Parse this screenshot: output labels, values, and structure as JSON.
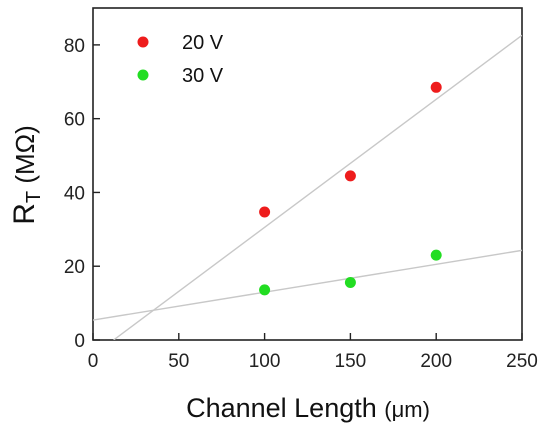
{
  "chart_data": {
    "type": "scatter",
    "xlabel": {
      "main": "Channel Length ",
      "unit": "(μm)"
    },
    "ylabel": {
      "main": "R",
      "sub": "T",
      "unit": " (MΩ)"
    },
    "xlim": [
      0,
      250
    ],
    "ylim": [
      0,
      90
    ],
    "xticks": [
      0,
      50,
      100,
      150,
      200,
      250
    ],
    "yticks": [
      0,
      20,
      40,
      60,
      80
    ],
    "legend_position": "top-left",
    "series": [
      {
        "name": "20 V",
        "color": "#ee1c1c",
        "x": [
          100,
          150,
          200
        ],
        "y": [
          34.7,
          44.5,
          68.5
        ],
        "fit_line": {
          "x": [
            12,
            250
          ],
          "y": [
            0,
            82.6
          ]
        }
      },
      {
        "name": "30 V",
        "color": "#22dd22",
        "x": [
          100,
          150,
          200
        ],
        "y": [
          13.6,
          15.6,
          23.0
        ],
        "fit_line": {
          "x": [
            0,
            250
          ],
          "y": [
            5.4,
            24.3
          ]
        }
      }
    ],
    "fit_line_color": "#c8c8c8"
  }
}
